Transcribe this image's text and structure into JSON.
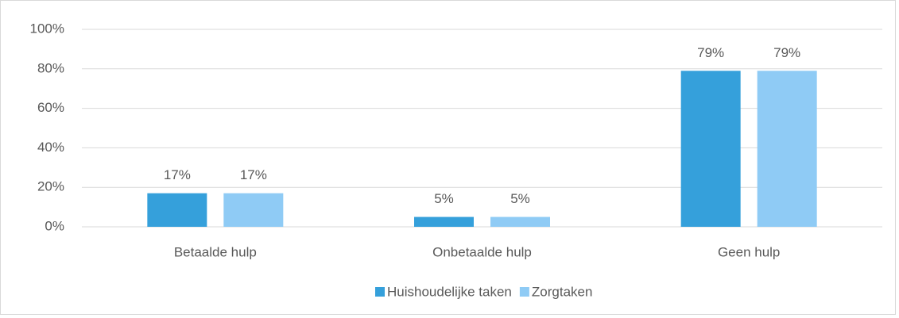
{
  "chart_data": {
    "type": "bar",
    "categories": [
      "Betaalde hulp",
      "Onbetaalde hulp",
      "Geen hulp"
    ],
    "series": [
      {
        "name": "Huishoudelijke taken",
        "color": "#35a0db",
        "values": [
          17,
          5,
          79
        ],
        "value_labels": [
          "17%",
          "5%",
          "79%"
        ]
      },
      {
        "name": "Zorgtaken",
        "color": "#8fcbf5",
        "values": [
          17,
          5,
          79
        ],
        "value_labels": [
          "17%",
          "5%",
          "79%"
        ]
      }
    ],
    "ylim": [
      0,
      100
    ],
    "yticks": [
      {
        "value": 0,
        "label": "0%"
      },
      {
        "value": 20,
        "label": "20%"
      },
      {
        "value": 40,
        "label": "40%"
      },
      {
        "value": 60,
        "label": "60%"
      },
      {
        "value": 80,
        "label": "80%"
      },
      {
        "value": 100,
        "label": "100%"
      }
    ],
    "grid": true,
    "legend": "bottom"
  }
}
